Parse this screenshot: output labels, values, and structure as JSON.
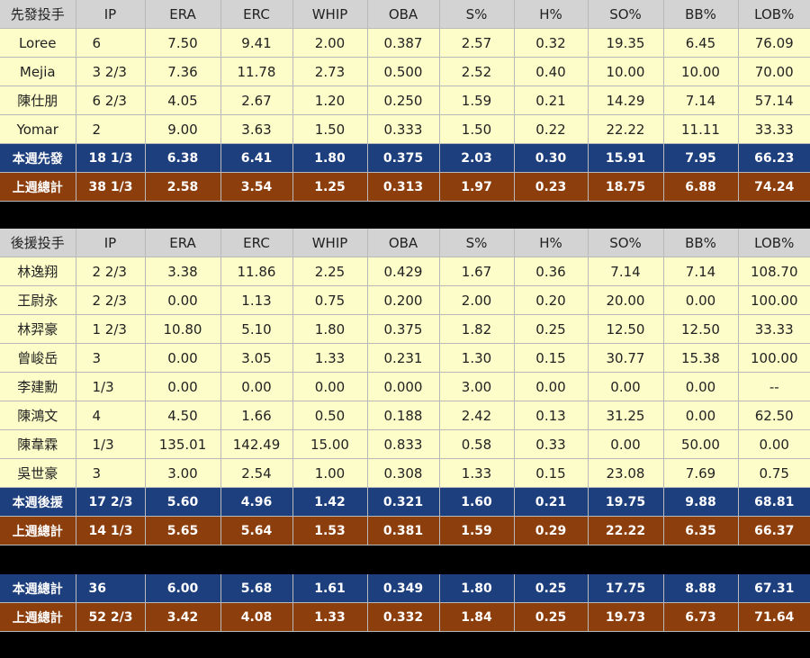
{
  "columns": [
    "IP",
    "ERA",
    "ERC",
    "WHIP",
    "OBA",
    "S%",
    "H%",
    "SO%",
    "BB%",
    "LOB%"
  ],
  "starters": {
    "header": "先發投手",
    "rows": [
      [
        "Loree",
        "6",
        "7.50",
        "9.41",
        "2.00",
        "0.387",
        "2.57",
        "0.32",
        "19.35",
        "6.45",
        "76.09"
      ],
      [
        "Mejia",
        "3 2/3",
        "7.36",
        "11.78",
        "2.73",
        "0.500",
        "2.52",
        "0.40",
        "10.00",
        "10.00",
        "70.00"
      ],
      [
        "陳仕朋",
        "6 2/3",
        "4.05",
        "2.67",
        "1.20",
        "0.250",
        "1.59",
        "0.21",
        "14.29",
        "7.14",
        "57.14"
      ],
      [
        "Yomar",
        "2",
        "9.00",
        "3.63",
        "1.50",
        "0.333",
        "1.50",
        "0.22",
        "22.22",
        "11.11",
        "33.33"
      ]
    ],
    "week": [
      "本週先發",
      "18 1/3",
      "6.38",
      "6.41",
      "1.80",
      "0.375",
      "2.03",
      "0.30",
      "15.91",
      "7.95",
      "66.23"
    ],
    "last": [
      "上週總計",
      "38 1/3",
      "2.58",
      "3.54",
      "1.25",
      "0.313",
      "1.97",
      "0.23",
      "18.75",
      "6.88",
      "74.24"
    ]
  },
  "relievers": {
    "header": "後援投手",
    "rows": [
      [
        "林逸翔",
        "2 2/3",
        "3.38",
        "11.86",
        "2.25",
        "0.429",
        "1.67",
        "0.36",
        "7.14",
        "7.14",
        "108.70"
      ],
      [
        "王尉永",
        "2 2/3",
        "0.00",
        "1.13",
        "0.75",
        "0.200",
        "2.00",
        "0.20",
        "20.00",
        "0.00",
        "100.00"
      ],
      [
        "林羿豪",
        "1 2/3",
        "10.80",
        "5.10",
        "1.80",
        "0.375",
        "1.82",
        "0.25",
        "12.50",
        "12.50",
        "33.33"
      ],
      [
        "曾峻岳",
        "3",
        "0.00",
        "3.05",
        "1.33",
        "0.231",
        "1.30",
        "0.15",
        "30.77",
        "15.38",
        "100.00"
      ],
      [
        "李建勳",
        "1/3",
        "0.00",
        "0.00",
        "0.00",
        "0.000",
        "3.00",
        "0.00",
        "0.00",
        "0.00",
        "--"
      ],
      [
        "陳鴻文",
        "4",
        "4.50",
        "1.66",
        "0.50",
        "0.188",
        "2.42",
        "0.13",
        "31.25",
        "0.00",
        "62.50"
      ],
      [
        "陳韋霖",
        "1/3",
        "135.01",
        "142.49",
        "15.00",
        "0.833",
        "0.58",
        "0.33",
        "0.00",
        "50.00",
        "0.00"
      ],
      [
        "吳世豪",
        "3",
        "3.00",
        "2.54",
        "1.00",
        "0.308",
        "1.33",
        "0.15",
        "23.08",
        "7.69",
        "0.75"
      ]
    ],
    "week": [
      "本週後援",
      "17 2/3",
      "5.60",
      "4.96",
      "1.42",
      "0.321",
      "1.60",
      "0.21",
      "19.75",
      "9.88",
      "68.81"
    ],
    "last": [
      "上週總計",
      "14 1/3",
      "5.65",
      "5.64",
      "1.53",
      "0.381",
      "1.59",
      "0.29",
      "22.22",
      "6.35",
      "66.37"
    ]
  },
  "totals": {
    "week": [
      "本週總計",
      "36",
      "6.00",
      "5.68",
      "1.61",
      "0.349",
      "1.80",
      "0.25",
      "17.75",
      "8.88",
      "67.31"
    ],
    "last": [
      "上週總計",
      "52 2/3",
      "3.42",
      "4.08",
      "1.33",
      "0.332",
      "1.84",
      "0.25",
      "19.73",
      "6.73",
      "71.64"
    ]
  }
}
